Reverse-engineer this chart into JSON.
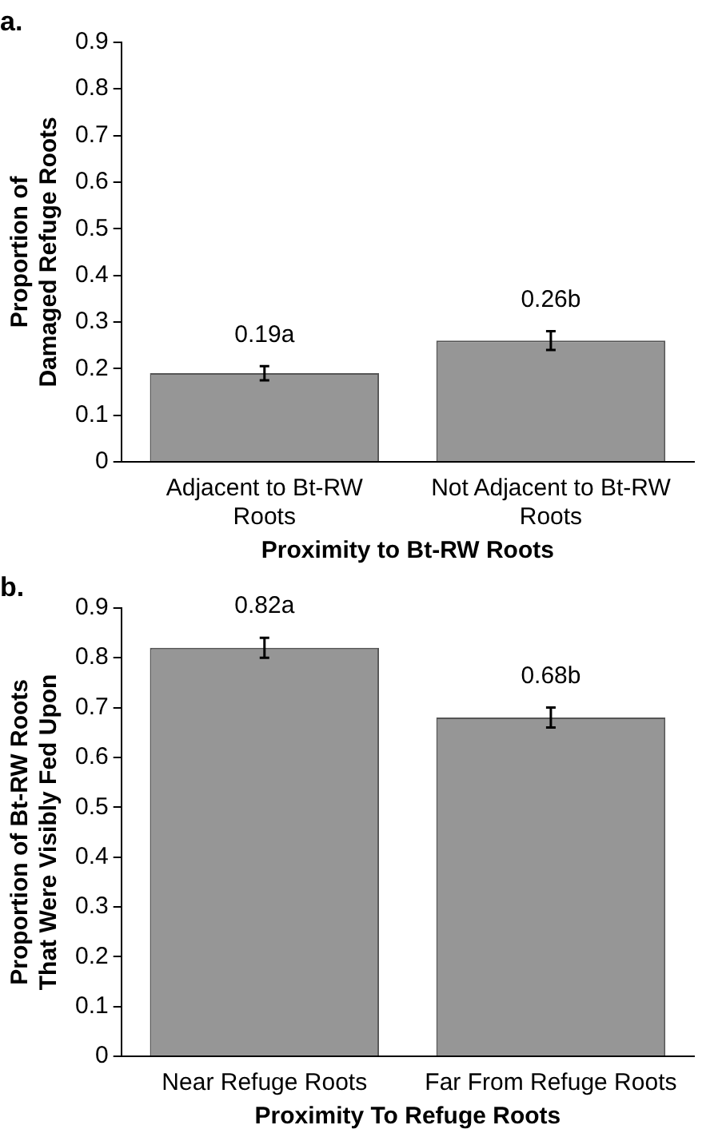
{
  "chart_data": [
    {
      "type": "bar",
      "title": "a.",
      "ylabel": "Proportion of\nDamaged Refuge Roots",
      "xlabel": "Proximity to Bt-RW Roots",
      "categories": [
        "Adjacent to Bt-RW Roots",
        "Not Adjacent to Bt-RW Roots"
      ],
      "values": [
        0.19,
        0.26
      ],
      "errors": [
        0.015,
        0.02
      ],
      "value_labels": [
        "0.19a",
        "0.26b"
      ],
      "color": "#969696",
      "ylim": [
        0,
        0.9
      ],
      "yticks": [
        0,
        0.1,
        0.2,
        0.3,
        0.4,
        0.5,
        0.6,
        0.7,
        0.8,
        0.9
      ],
      "grid": false,
      "legend": false
    },
    {
      "type": "bar",
      "title": "b.",
      "ylabel": "Proportion of Bt-RW Roots\nThat Were Visibly Fed Upon",
      "xlabel": "Proximity To Refuge Roots",
      "categories": [
        "Near Refuge Roots",
        "Far From Refuge Roots"
      ],
      "values": [
        0.82,
        0.68
      ],
      "errors": [
        0.02,
        0.02
      ],
      "value_labels": [
        "0.82a",
        "0.68b"
      ],
      "color": "#969696",
      "ylim": [
        0,
        0.9
      ],
      "yticks": [
        0,
        0.1,
        0.2,
        0.3,
        0.4,
        0.5,
        0.6,
        0.7,
        0.8,
        0.9
      ],
      "grid": false,
      "legend": false
    }
  ]
}
